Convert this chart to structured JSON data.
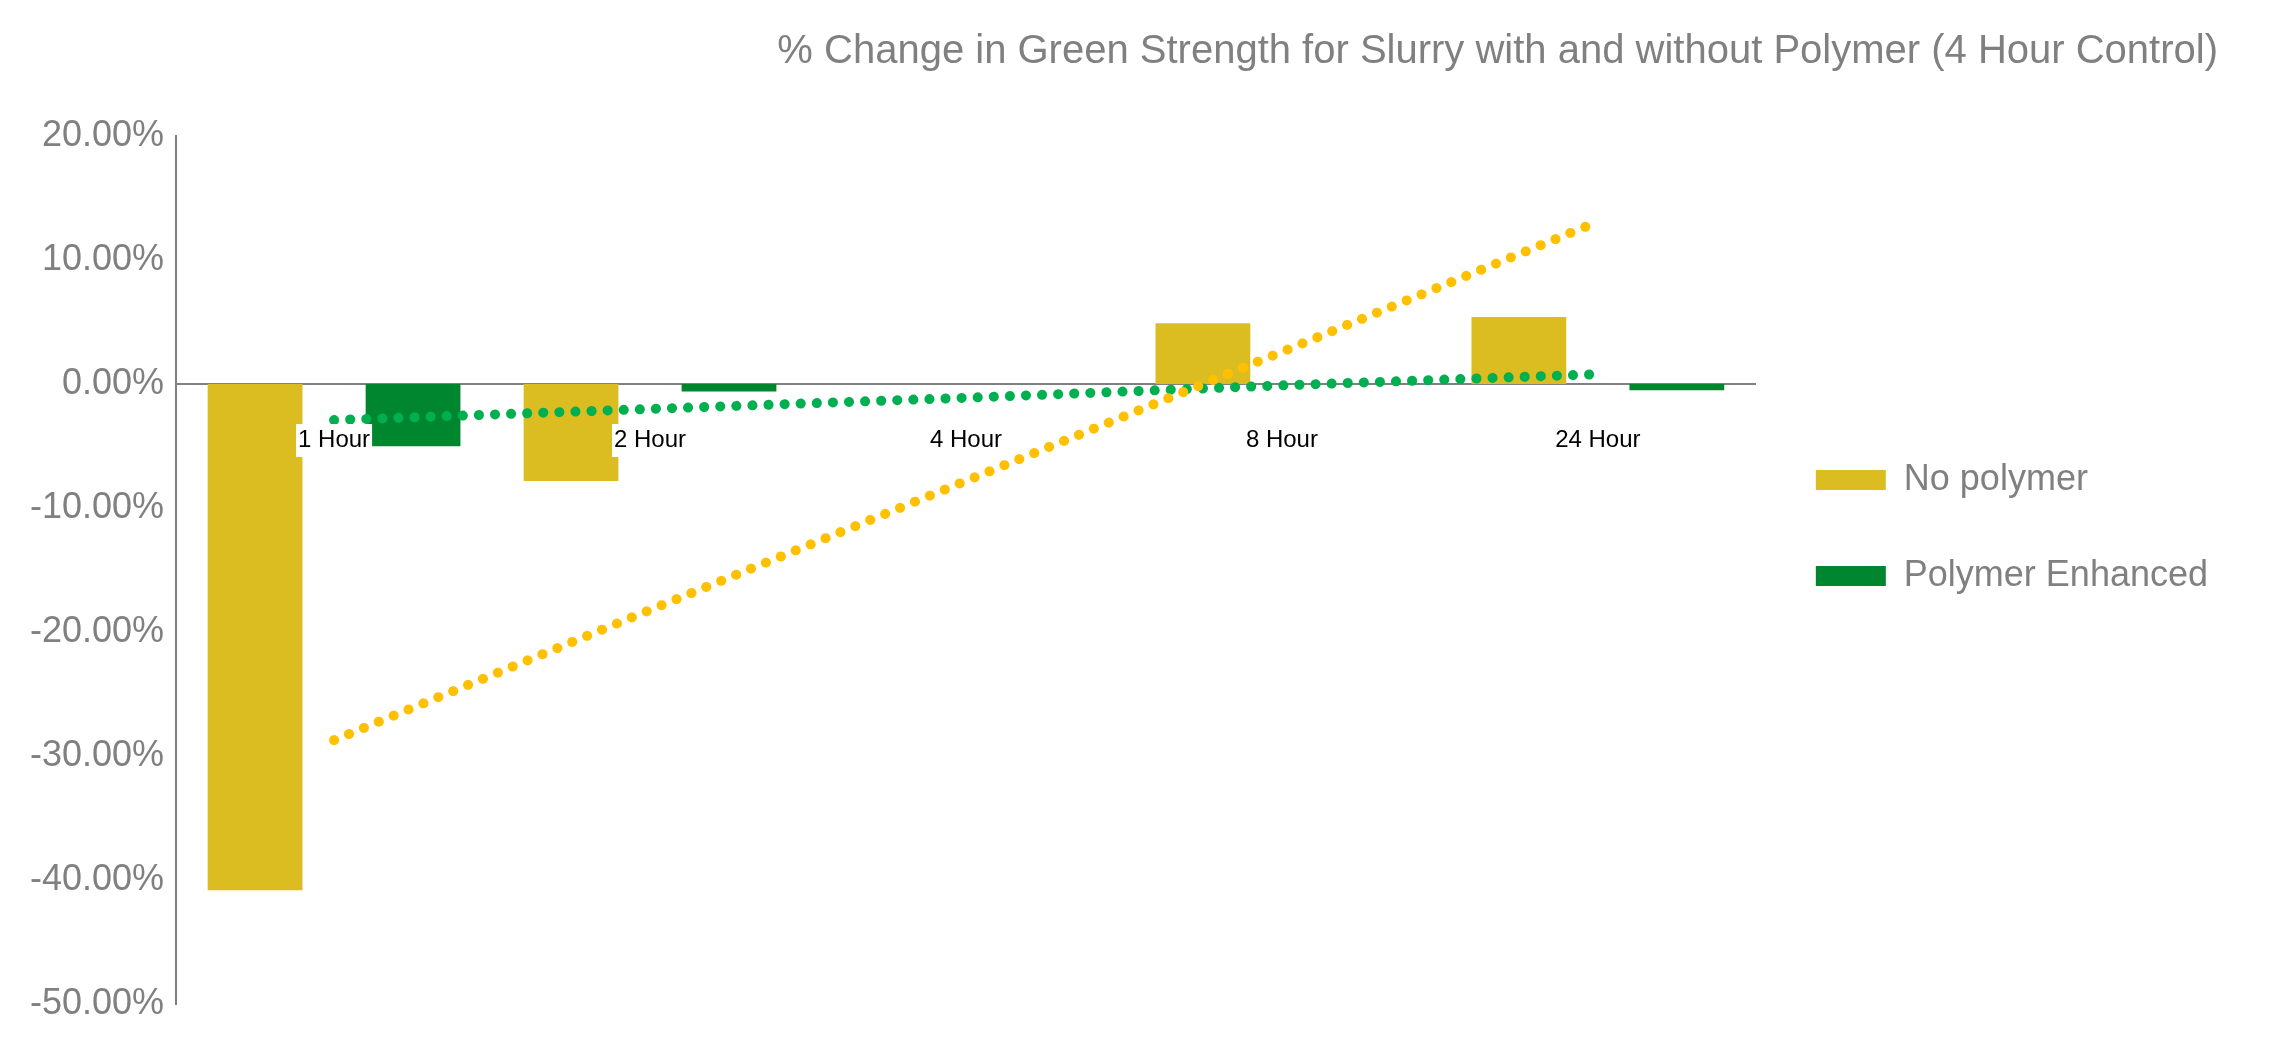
{
  "chart_data": {
    "type": "bar",
    "title": "% Change in Green Strength for Slurry with and without Polymer (4 Hour Control)",
    "categories": [
      "1 Hour",
      "2 Hour",
      "4 Hour",
      "8 Hour",
      "24 Hour"
    ],
    "series": [
      {
        "name": "No polymer",
        "color": "#dbbd22",
        "values": [
          -40.8,
          -7.8,
          0,
          4.9,
          5.4
        ]
      },
      {
        "name": "Polymer Enhanced",
        "color": "#00862e",
        "values": [
          -5.0,
          -0.6,
          0,
          0,
          -0.5
        ]
      },
      {
        "type": "line",
        "color": "#ffc000",
        "line_style": "dotted",
        "marker": "none",
        "values": [
          -28.7,
          -18.2,
          -7.8,
          2.6,
          13.1
        ]
      },
      {
        "type": "line",
        "color": "#00b050",
        "line_style": "dotted",
        "marker": "none",
        "values": [
          -2.9,
          -2.0,
          -1.1,
          -0.1,
          0.8
        ]
      }
    ],
    "ylim": [
      -50,
      20
    ],
    "yticks": [
      {
        "value": -50,
        "label": "-50.00%"
      },
      {
        "value": -40,
        "label": "-40.00%"
      },
      {
        "value": -30,
        "label": "-30.00%"
      },
      {
        "value": -20,
        "label": "-20.00%"
      },
      {
        "value": -10,
        "label": "-10.00%"
      },
      {
        "value": 0,
        "label": "0.00%"
      },
      {
        "value": 10,
        "label": "10.00%"
      },
      {
        "value": 20,
        "label": "20.00%"
      }
    ],
    "grid": false,
    "legend": "right"
  }
}
